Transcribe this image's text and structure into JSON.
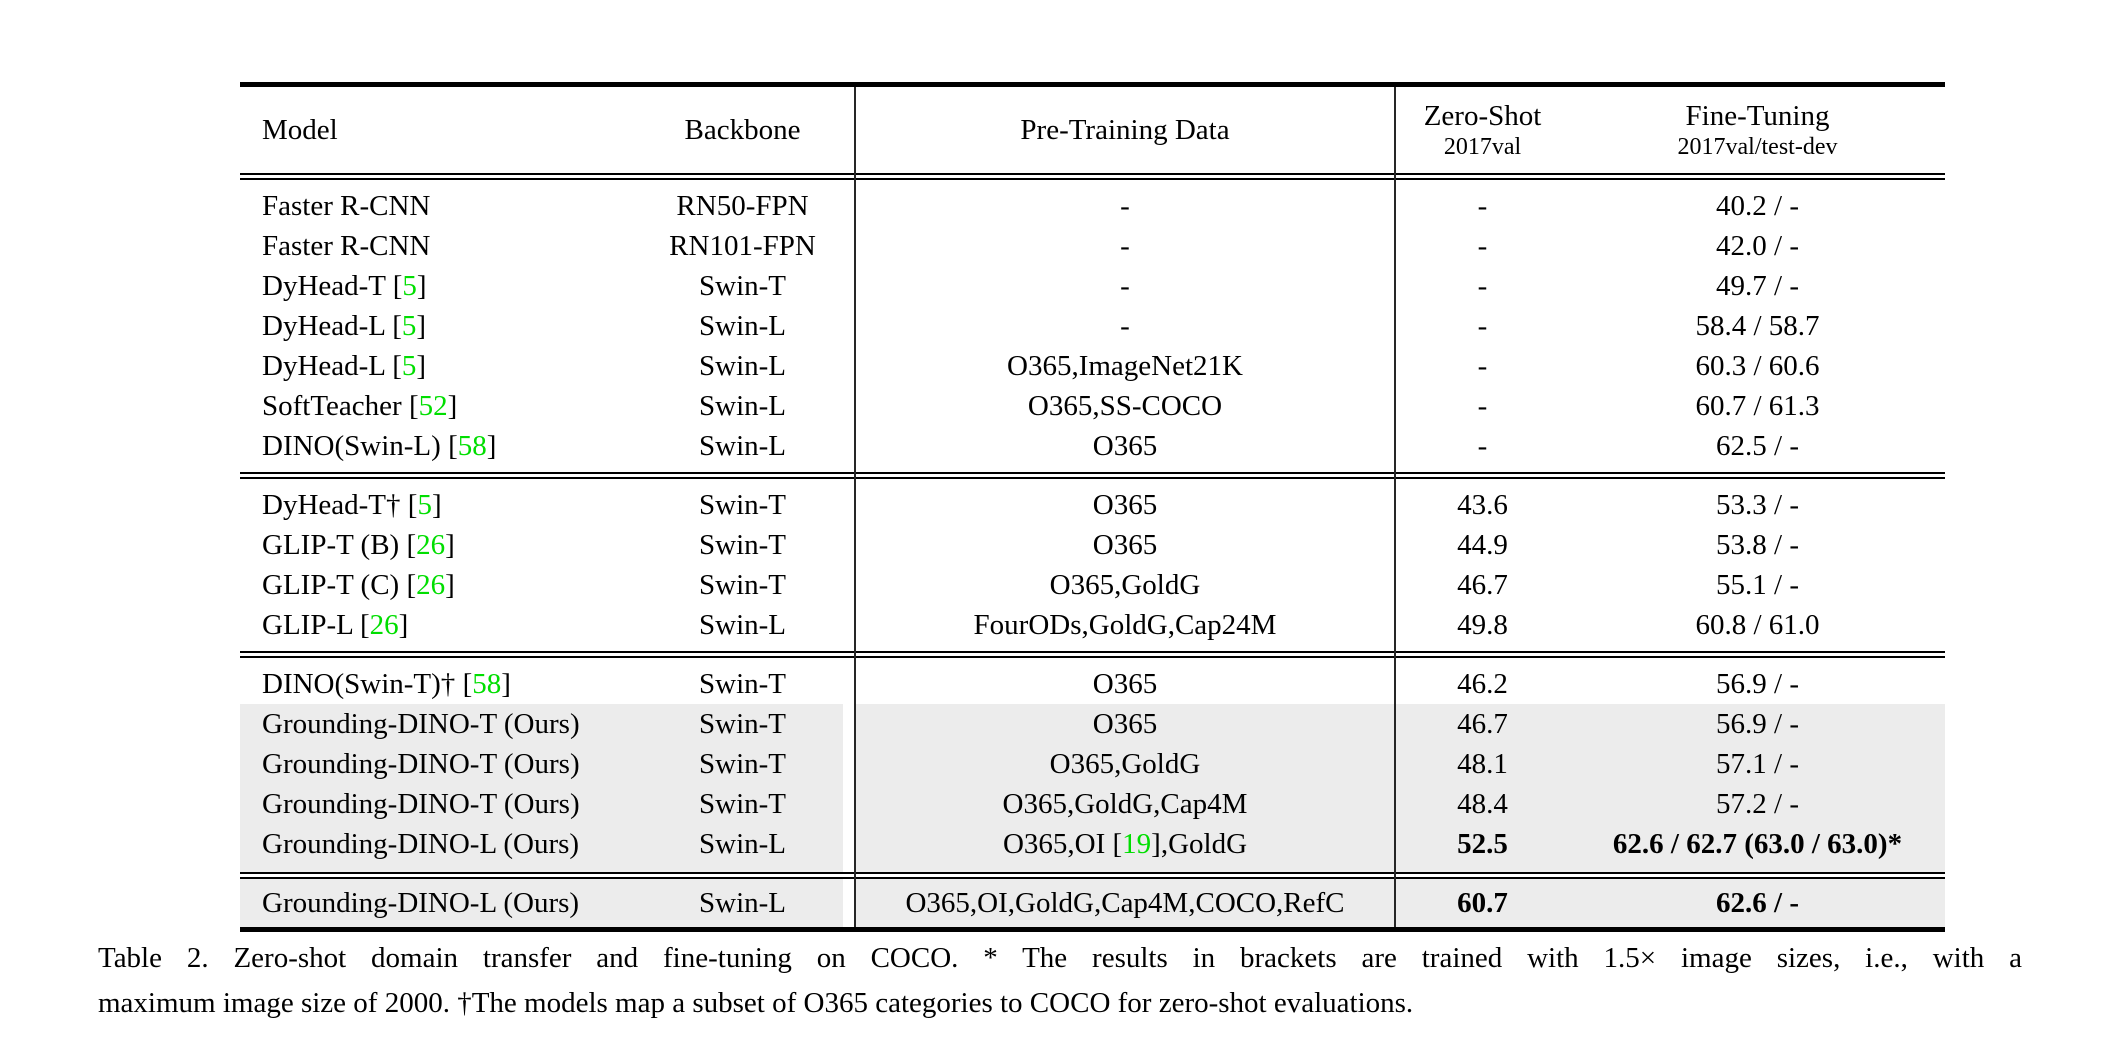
{
  "colors": {
    "green": "#00de00",
    "shade": "#ececec"
  },
  "header": {
    "model": "Model",
    "backbone": "Backbone",
    "pretraining": "Pre-Training Data",
    "zeroshot_title": "Zero-Shot",
    "zeroshot_sub": "2017val",
    "finetuning_title": "Fine-Tuning",
    "finetuning_sub": "2017val/test-dev"
  },
  "rows": [
    {
      "model_pre": "Faster R-CNN",
      "model_cite": "",
      "backbone": "RN50-FPN",
      "data_pre": "-",
      "data_cite": "",
      "data_post": "",
      "zeroshot": "-",
      "finetuning": "40.2 / -"
    },
    {
      "model_pre": "Faster R-CNN",
      "model_cite": "",
      "backbone": "RN101-FPN",
      "data_pre": "-",
      "data_cite": "",
      "data_post": "",
      "zeroshot": "-",
      "finetuning": "42.0 / -"
    },
    {
      "model_pre": "DyHead-T ",
      "model_cite": "5",
      "backbone": "Swin-T",
      "data_pre": "-",
      "data_cite": "",
      "data_post": "",
      "zeroshot": "-",
      "finetuning": "49.7 / -"
    },
    {
      "model_pre": "DyHead-L ",
      "model_cite": "5",
      "backbone": "Swin-L",
      "data_pre": "-",
      "data_cite": "",
      "data_post": "",
      "zeroshot": "-",
      "finetuning": "58.4 / 58.7"
    },
    {
      "model_pre": "DyHead-L ",
      "model_cite": "5",
      "backbone": "Swin-L",
      "data_pre": "O365,ImageNet21K",
      "data_cite": "",
      "data_post": "",
      "zeroshot": "-",
      "finetuning": "60.3 / 60.6"
    },
    {
      "model_pre": "SoftTeacher ",
      "model_cite": "52",
      "backbone": "Swin-L",
      "data_pre": "O365,SS-COCO",
      "data_cite": "",
      "data_post": "",
      "zeroshot": "-",
      "finetuning": "60.7 / 61.3"
    },
    {
      "model_pre": "DINO(Swin-L) ",
      "model_cite": "58",
      "backbone": "Swin-L",
      "data_pre": "O365",
      "data_cite": "",
      "data_post": "",
      "zeroshot": "-",
      "finetuning": "62.5 / -"
    },
    {
      "model_pre": "DyHead-T† ",
      "model_cite": "5",
      "backbone": "Swin-T",
      "data_pre": "O365",
      "data_cite": "",
      "data_post": "",
      "zeroshot": "43.6",
      "finetuning": "53.3 / -"
    },
    {
      "model_pre": "GLIP-T (B) ",
      "model_cite": "26",
      "backbone": "Swin-T",
      "data_pre": "O365",
      "data_cite": "",
      "data_post": "",
      "zeroshot": "44.9",
      "finetuning": "53.8 / -"
    },
    {
      "model_pre": "GLIP-T (C) ",
      "model_cite": "26",
      "backbone": "Swin-T",
      "data_pre": "O365,GoldG",
      "data_cite": "",
      "data_post": "",
      "zeroshot": "46.7",
      "finetuning": "55.1 / -"
    },
    {
      "model_pre": "GLIP-L ",
      "model_cite": "26",
      "backbone": "Swin-L",
      "data_pre": "FourODs,GoldG,Cap24M",
      "data_cite": "",
      "data_post": "",
      "zeroshot": "49.8",
      "finetuning": "60.8 / 61.0"
    },
    {
      "model_pre": "DINO(Swin-T)† ",
      "model_cite": "58",
      "backbone": "Swin-T",
      "data_pre": "O365",
      "data_cite": "",
      "data_post": "",
      "zeroshot": "46.2",
      "finetuning": "56.9 / -"
    },
    {
      "model_pre": "Grounding-DINO-T (Ours)",
      "model_cite": "",
      "backbone": "Swin-T",
      "data_pre": "O365",
      "data_cite": "",
      "data_post": "",
      "zeroshot": "46.7",
      "finetuning": "56.9 / -"
    },
    {
      "model_pre": "Grounding-DINO-T (Ours)",
      "model_cite": "",
      "backbone": "Swin-T",
      "data_pre": "O365,GoldG",
      "data_cite": "",
      "data_post": "",
      "zeroshot": "48.1",
      "finetuning": "57.1 / -"
    },
    {
      "model_pre": "Grounding-DINO-T (Ours)",
      "model_cite": "",
      "backbone": "Swin-T",
      "data_pre": "O365,GoldG,Cap4M",
      "data_cite": "",
      "data_post": "",
      "zeroshot": "48.4",
      "finetuning": "57.2 / -"
    },
    {
      "model_pre": "Grounding-DINO-L (Ours)",
      "model_cite": "",
      "backbone": "Swin-L",
      "data_pre": "O365,OI ",
      "data_cite": "19",
      "data_post": ",GoldG",
      "zeroshot": "52.5",
      "finetuning": "62.6 / 62.7 (63.0 / 63.0)*"
    },
    {
      "model_pre": "Grounding-DINO-L (Ours)",
      "model_cite": "",
      "backbone": "Swin-L",
      "data_pre": "O365,OI,GoldG,Cap4M,COCO,RefC",
      "data_cite": "",
      "data_post": "",
      "zeroshot": "60.7",
      "finetuning": "62.6 / -"
    }
  ],
  "caption": {
    "line1": "Table 2. Zero-shot domain transfer and fine-tuning on COCO. * The results in brackets are trained with 1.5× image sizes, i.e., with a",
    "line2": "maximum image size of 2000. †The models map a subset of O365 categories to COCO for zero-shot evaluations."
  }
}
